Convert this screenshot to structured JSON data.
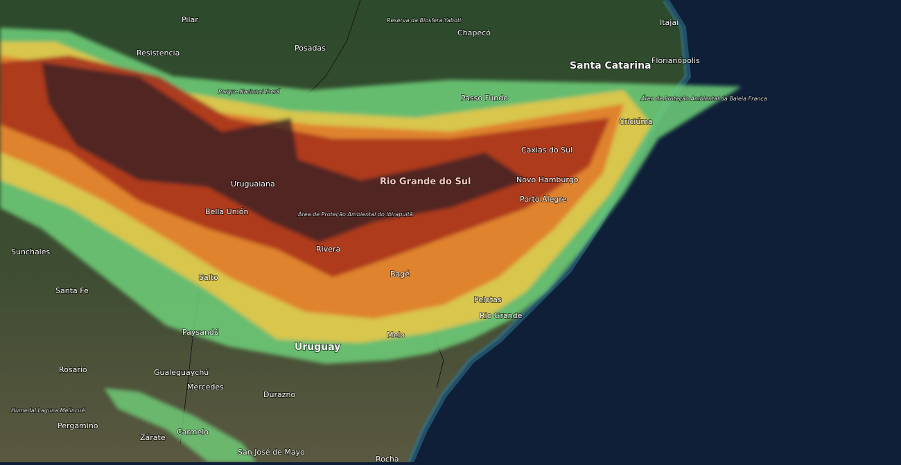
{
  "labels": [
    "Pilar",
    "Reserva da Biosfera Yaboti",
    "Chapecó",
    "Itajaí",
    "Resistencia",
    "Posadas",
    "Santa Catarina",
    "Florianópolis",
    "Parque Nacional Iberá",
    "Passo Fundo",
    "Área de Proteção Ambiental da Baleia Franca",
    "Criciúma",
    "Caxias do Sul",
    "Rio Grande do Sul",
    "Novo Hamburgo",
    "Uruguaiana",
    "Porto Alegre",
    "Bella Unión",
    "Área de Proteção Ambiental do Ibirapuitã",
    "Sunchales",
    "Rivera",
    "Salto",
    "Bagé",
    "Santa Fe",
    "Pelotas",
    "Rio Grande",
    "Paysandú",
    "Melo",
    "Uruguay",
    "Rosario",
    "Gualeguaychú",
    "Mercedes",
    "Durazno",
    "Humedal Laguna Melincué",
    "Pergamino",
    "Zárate",
    "Carmelo",
    "San José de Mayo",
    "Rocha"
  ]
}
